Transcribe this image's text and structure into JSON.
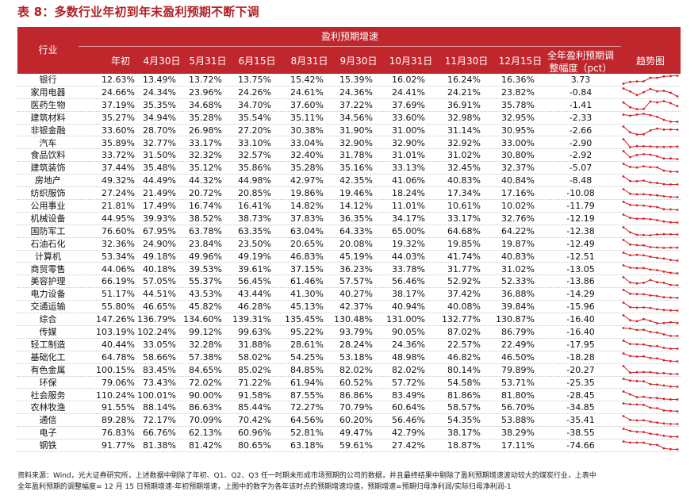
{
  "title": "表 8：多数行业年初到年末盈利预期不断下调",
  "header": {
    "industry": "行业",
    "group": "盈利预期增速",
    "columns": [
      "年初",
      "4月30日",
      "5月31日",
      "6月15日",
      "8月31日",
      "9月30日",
      "10月31日",
      "11月30日",
      "12月15日"
    ],
    "adjust_line1": "全年盈利预期调",
    "adjust_line2": "整幅度（pct）",
    "trend": "趋势图"
  },
  "rows": [
    {
      "name": "银行",
      "values": [
        "12.63%",
        "13.49%",
        "13.72%",
        "13.75%",
        "15.42%",
        "15.39%",
        "16.02%",
        "16.24%",
        "16.36%"
      ],
      "adj": "3.73"
    },
    {
      "name": "家用电器",
      "values": [
        "24.66%",
        "24.34%",
        "23.96%",
        "24.26%",
        "24.61%",
        "24.36%",
        "24.41%",
        "24.21%",
        "23.82%"
      ],
      "adj": "-0.84"
    },
    {
      "name": "医药生物",
      "values": [
        "37.19%",
        "35.35%",
        "34.68%",
        "34.70%",
        "37.60%",
        "37.22%",
        "37.69%",
        "36.91%",
        "35.78%"
      ],
      "adj": "-1.41"
    },
    {
      "name": "建筑材料",
      "values": [
        "35.27%",
        "34.94%",
        "35.28%",
        "35.54%",
        "35.11%",
        "34.56%",
        "33.60%",
        "32.98%",
        "32.95%"
      ],
      "adj": "-2.33"
    },
    {
      "name": "非银金融",
      "values": [
        "33.60%",
        "28.70%",
        "26.98%",
        "27.20%",
        "30.38%",
        "31.90%",
        "31.00%",
        "31.14%",
        "30.95%"
      ],
      "adj": "-2.66"
    },
    {
      "name": "汽车",
      "values": [
        "35.89%",
        "32.77%",
        "33.17%",
        "33.10%",
        "33.04%",
        "32.90%",
        "32.90%",
        "32.92%",
        "33.00%"
      ],
      "adj": "-2.90"
    },
    {
      "name": "食品饮料",
      "values": [
        "33.72%",
        "31.50%",
        "32.32%",
        "32.57%",
        "32.40%",
        "31.78%",
        "31.01%",
        "31.02%",
        "30.80%"
      ],
      "adj": "-2.92"
    },
    {
      "name": "建筑装饰",
      "values": [
        "37.44%",
        "35.48%",
        "35.12%",
        "35.86%",
        "35.28%",
        "35.16%",
        "33.13%",
        "32.45%",
        "32.37%"
      ],
      "adj": "-5.07"
    },
    {
      "name": "房地产",
      "values": [
        "49.32%",
        "44.49%",
        "44.32%",
        "44.98%",
        "42.97%",
        "42.35%",
        "41.06%",
        "40.83%",
        "40.84%"
      ],
      "adj": "-8.48"
    },
    {
      "name": "纺织服饰",
      "values": [
        "27.24%",
        "21.49%",
        "20.72%",
        "20.85%",
        "19.86%",
        "19.46%",
        "18.24%",
        "17.34%",
        "17.16%"
      ],
      "adj": "-10.08"
    },
    {
      "name": "公用事业",
      "values": [
        "21.81%",
        "17.49%",
        "16.74%",
        "16.41%",
        "14.82%",
        "14.12%",
        "11.01%",
        "10.61%",
        "10.02%"
      ],
      "adj": "-11.79"
    },
    {
      "name": "机械设备",
      "values": [
        "44.95%",
        "39.93%",
        "38.52%",
        "38.73%",
        "37.83%",
        "36.35%",
        "34.17%",
        "33.17%",
        "32.76%"
      ],
      "adj": "-12.19"
    },
    {
      "name": "国防军工",
      "values": [
        "76.60%",
        "67.95%",
        "63.78%",
        "63.35%",
        "63.04%",
        "64.33%",
        "65.00%",
        "64.68%",
        "64.22%"
      ],
      "adj": "-12.38"
    },
    {
      "name": "石油石化",
      "values": [
        "32.36%",
        "24.90%",
        "23.84%",
        "23.50%",
        "20.65%",
        "20.08%",
        "19.32%",
        "19.85%",
        "19.87%"
      ],
      "adj": "-12.49"
    },
    {
      "name": "计算机",
      "values": [
        "53.34%",
        "49.18%",
        "49.96%",
        "49.19%",
        "46.83%",
        "45.19%",
        "44.03%",
        "41.74%",
        "40.83%"
      ],
      "adj": "-12.51"
    },
    {
      "name": "商贸零售",
      "values": [
        "44.06%",
        "40.18%",
        "39.53%",
        "39.61%",
        "37.15%",
        "36.23%",
        "33.78%",
        "31.77%",
        "31.02%"
      ],
      "adj": "-13.05"
    },
    {
      "name": "美容护理",
      "values": [
        "66.19%",
        "57.05%",
        "55.37%",
        "56.45%",
        "61.46%",
        "57.57%",
        "56.46%",
        "52.92%",
        "52.33%"
      ],
      "adj": "-13.86"
    },
    {
      "name": "电力设备",
      "values": [
        "51.17%",
        "44.51%",
        "43.53%",
        "43.44%",
        "41.30%",
        "40.27%",
        "38.17%",
        "37.42%",
        "36.88%"
      ],
      "adj": "-14.29"
    },
    {
      "name": "交通运输",
      "values": [
        "55.80%",
        "46.65%",
        "45.82%",
        "46.28%",
        "45.13%",
        "42.37%",
        "40.94%",
        "40.08%",
        "39.84%"
      ],
      "adj": "-15.96"
    },
    {
      "name": "综合",
      "values": [
        "147.26%",
        "136.79%",
        "134.60%",
        "139.31%",
        "135.45%",
        "130.48%",
        "131.00%",
        "132.77%",
        "130.87%"
      ],
      "adj": "-16.40"
    },
    {
      "name": "传媒",
      "values": [
        "103.19%",
        "102.24%",
        "99.12%",
        "99.63%",
        "95.22%",
        "93.79%",
        "90.05%",
        "87.02%",
        "86.79%"
      ],
      "adj": "-16.40"
    },
    {
      "name": "轻工制造",
      "values": [
        "40.44%",
        "33.05%",
        "32.28%",
        "31.88%",
        "28.61%",
        "28.24%",
        "24.36%",
        "22.57%",
        "22.49%"
      ],
      "adj": "-17.95"
    },
    {
      "name": "基础化工",
      "values": [
        "64.78%",
        "58.66%",
        "57.38%",
        "58.02%",
        "54.25%",
        "53.18%",
        "48.98%",
        "46.82%",
        "46.50%"
      ],
      "adj": "-18.28"
    },
    {
      "name": "有色金属",
      "values": [
        "100.15%",
        "83.45%",
        "84.65%",
        "85.02%",
        "84.85%",
        "82.02%",
        "82.02%",
        "80.14%",
        "79.89%"
      ],
      "adj": "-20.27"
    },
    {
      "name": "环保",
      "values": [
        "79.06%",
        "73.43%",
        "72.02%",
        "71.22%",
        "61.94%",
        "60.52%",
        "57.72%",
        "54.58%",
        "53.71%"
      ],
      "adj": "-25.35"
    },
    {
      "name": "社会服务",
      "values": [
        "110.24%",
        "100.01%",
        "90.00%",
        "91.58%",
        "87.55%",
        "86.86%",
        "83.49%",
        "81.86%",
        "81.80%"
      ],
      "adj": "-28.45"
    },
    {
      "name": "农林牧渔",
      "values": [
        "91.55%",
        "88.14%",
        "86.63%",
        "85.44%",
        "72.27%",
        "70.79%",
        "60.64%",
        "58.57%",
        "56.70%"
      ],
      "adj": "-34.85"
    },
    {
      "name": "通信",
      "values": [
        "89.28%",
        "72.17%",
        "70.09%",
        "70.42%",
        "64.56%",
        "60.20%",
        "56.46%",
        "54.35%",
        "53.88%"
      ],
      "adj": "-35.41"
    },
    {
      "name": "电子",
      "values": [
        "76.83%",
        "66.76%",
        "62.13%",
        "60.96%",
        "52.81%",
        "49.47%",
        "42.79%",
        "38.17%",
        "38.29%"
      ],
      "adj": "-38.55"
    },
    {
      "name": "钢铁",
      "values": [
        "91.77%",
        "81.38%",
        "81.42%",
        "80.65%",
        "63.18%",
        "59.61%",
        "27.42%",
        "18.87%",
        "17.11%"
      ],
      "adj": "-74.66"
    }
  ],
  "source_line1": "资料来源：Wind，光大证券研究所，上述数据中剔除了年初、Q1、Q2、Q3 任一时期未形成市场预期的公司的数据，并且最终结果中剔除了盈利预期增速波动较大的煤炭行业，上表中",
  "source_line2": "全年盈利预期的调整幅度= 12 月 15 日预期增速-年初预期增速，上图中的数字为各年该时点的预期增速均值，预期增速=预期归母净利润/实际归母净利润-1",
  "colors": {
    "header_bg": "#c0272d",
    "title": "#b21f24",
    "spark": "#d22027"
  }
}
